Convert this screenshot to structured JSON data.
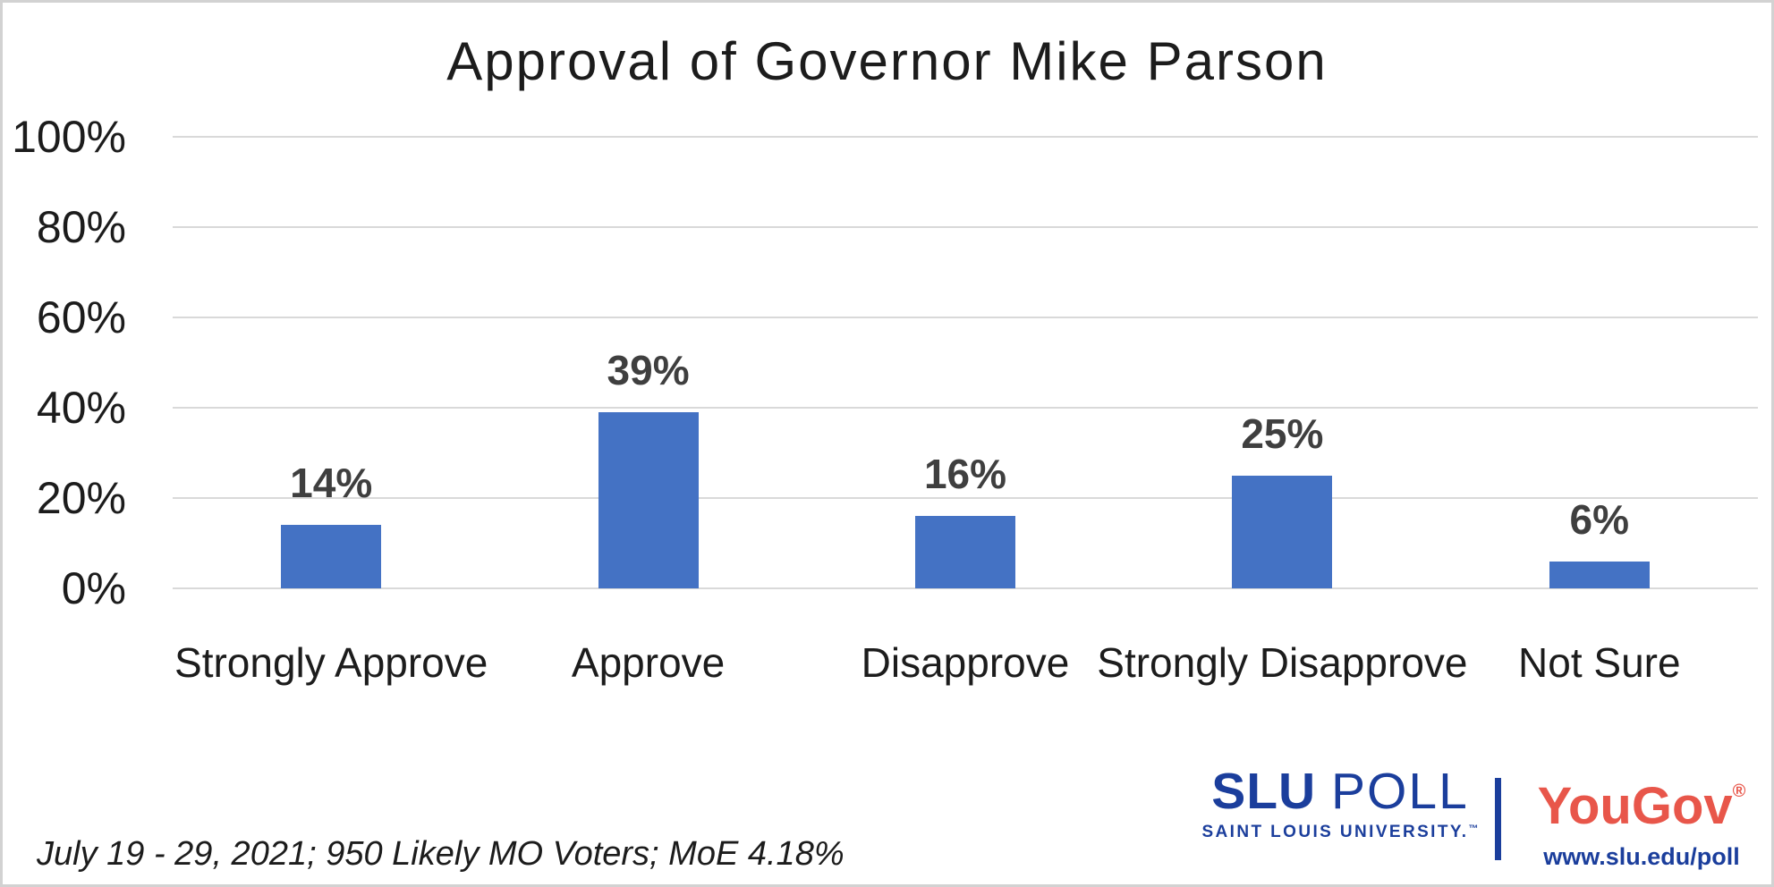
{
  "chart_data": {
    "type": "bar",
    "title": "Approval of Governor Mike Parson",
    "categories": [
      "Strongly Approve",
      "Approve",
      "Disapprove",
      "Strongly Disapprove",
      "Not Sure"
    ],
    "values": [
      14,
      39,
      16,
      25,
      6
    ],
    "value_labels": [
      "14%",
      "39%",
      "16%",
      "25%",
      "6%"
    ],
    "xlabel": "",
    "ylabel": "",
    "ylim": [
      0,
      100
    ],
    "y_ticks": [
      {
        "label": "0%",
        "value": 0
      },
      {
        "label": "20%",
        "value": 20
      },
      {
        "label": "40%",
        "value": 40
      },
      {
        "label": "60%",
        "value": 60
      },
      {
        "label": "80%",
        "value": 80
      },
      {
        "label": "100%",
        "value": 100
      }
    ],
    "grid": true,
    "legend": false,
    "bar_color": "#4472C4",
    "value_label_color": "#3F3F3F",
    "gridline_color": "#D9D9D9"
  },
  "footnote": "July 19 - 29, 2021; 950 Likely MO Voters; MoE 4.18%",
  "branding": {
    "slu": {
      "word1": "SLU",
      "word2": "POLL",
      "subtitle": "SAINT LOUIS UNIVERSITY.",
      "trademark": "™",
      "color": "#1B3E9C"
    },
    "yougov": {
      "name": "YouGov",
      "registered": "®",
      "color": "#E8564A"
    },
    "url": "www.slu.edu/poll",
    "url_color": "#1B3E9C"
  }
}
